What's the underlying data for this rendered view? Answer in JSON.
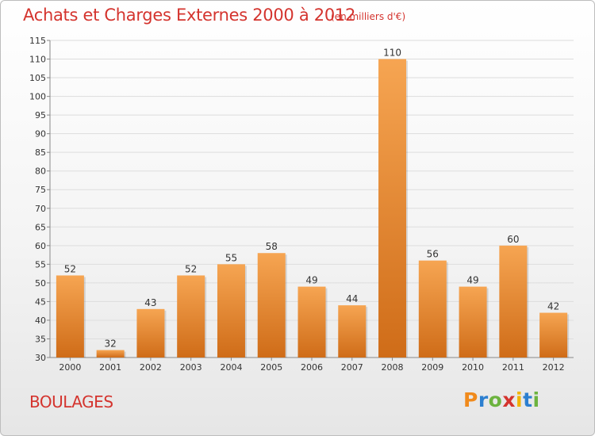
{
  "header": {
    "title": "Achats et Charges Externes 2000 à 2012",
    "unit": "(en milliers d'€)"
  },
  "footer": {
    "commune": "BOULAGES",
    "logo_letters": [
      "P",
      "r",
      "o",
      "x",
      "i",
      "t",
      "i"
    ],
    "logo_colors": [
      "#f08a1c",
      "#2c7fd0",
      "#6cb33f",
      "#d4342e",
      "#f2b400",
      "#2c7fd0",
      "#6cb33f"
    ]
  },
  "colors": {
    "bar_light": "#f6a552",
    "bar_dark": "#cf6c18",
    "grid": "#dddddd",
    "text_accent": "#d4342e"
  },
  "chart_data": {
    "type": "bar",
    "title": "Achats et Charges Externes 2000 à 2012",
    "subtitle": "(en milliers d'€)",
    "categories": [
      "2000",
      "2001",
      "2002",
      "2003",
      "2004",
      "2005",
      "2006",
      "2007",
      "2008",
      "2009",
      "2010",
      "2011",
      "2012"
    ],
    "values": [
      52,
      32,
      43,
      52,
      55,
      58,
      49,
      44,
      110,
      56,
      49,
      60,
      42
    ],
    "ylim": [
      30,
      115
    ],
    "yticks": [
      30,
      35,
      40,
      45,
      50,
      55,
      60,
      65,
      70,
      75,
      80,
      85,
      90,
      95,
      100,
      105,
      110,
      115
    ],
    "grid": true,
    "xlabel": "",
    "ylabel": ""
  }
}
